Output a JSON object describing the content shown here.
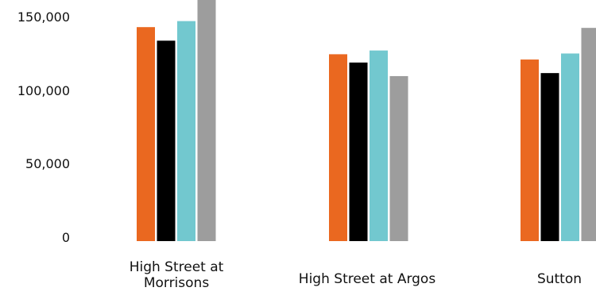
{
  "chart_data": {
    "type": "bar",
    "title": "",
    "xlabel": "",
    "ylabel": "",
    "ylim": [
      0,
      160000
    ],
    "grid": false,
    "legend": "none",
    "yticks": [
      "0",
      "50,000",
      "100,000",
      "150,000"
    ],
    "ytick_values": [
      0,
      50000,
      100000,
      150000
    ],
    "categories": [
      [
        "High Street at",
        "Morrisons"
      ],
      [
        "High Street at Argos"
      ],
      [
        "Sutton"
      ]
    ],
    "series": [
      {
        "color": "#EA6820",
        "values": [
          142000,
          124000,
          120500
        ]
      },
      {
        "color": "#000000",
        "values": [
          133000,
          118500,
          111500
        ]
      },
      {
        "color": "#72C8CF",
        "values": [
          146000,
          126500,
          124500
        ]
      },
      {
        "color": "#9D9D9D",
        "values": [
          160000,
          109500,
          141500
        ]
      }
    ]
  }
}
